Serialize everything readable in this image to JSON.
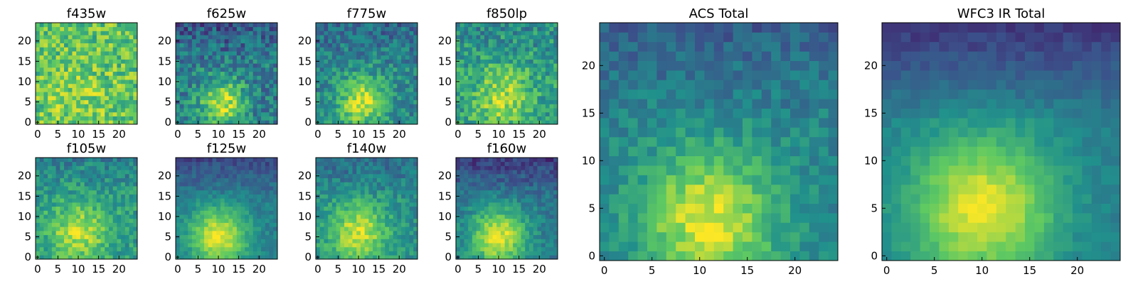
{
  "chart_data": [
    {
      "type": "heatmap",
      "title": "f435w",
      "grid_size": 25,
      "xlim": [
        0,
        24
      ],
      "ylim": [
        0,
        24
      ],
      "xticks": [
        0,
        5,
        10,
        15,
        20
      ],
      "yticks": [
        0,
        5,
        10,
        15,
        20
      ],
      "peak": [
        10,
        6
      ],
      "background_level": 0.72,
      "noise": 0.2,
      "peak_amplitude": 0.1,
      "peak_sigma": 6,
      "top_fade": 0.0
    },
    {
      "type": "heatmap",
      "title": "f625w",
      "grid_size": 25,
      "xlim": [
        0,
        24
      ],
      "ylim": [
        0,
        24
      ],
      "xticks": [
        0,
        5,
        10,
        15,
        20
      ],
      "yticks": [
        0,
        5,
        10,
        15,
        20
      ],
      "peak": [
        11,
        5
      ],
      "background_level": 0.42,
      "noise": 0.18,
      "peak_amplitude": 0.5,
      "peak_sigma": 4,
      "top_fade": 0.15
    },
    {
      "type": "heatmap",
      "title": "f775w",
      "grid_size": 25,
      "xlim": [
        0,
        24
      ],
      "ylim": [
        0,
        24
      ],
      "xticks": [
        0,
        5,
        10,
        15,
        20
      ],
      "yticks": [
        0,
        5,
        10,
        15,
        20
      ],
      "peak": [
        11,
        5
      ],
      "background_level": 0.46,
      "noise": 0.16,
      "peak_amplitude": 0.48,
      "peak_sigma": 4.2,
      "top_fade": 0.12
    },
    {
      "type": "heatmap",
      "title": "f850lp",
      "grid_size": 25,
      "xlim": [
        0,
        24
      ],
      "ylim": [
        0,
        24
      ],
      "xticks": [
        0,
        5,
        10,
        15,
        20
      ],
      "yticks": [
        0,
        5,
        10,
        15,
        20
      ],
      "peak": [
        11,
        6
      ],
      "background_level": 0.56,
      "noise": 0.18,
      "peak_amplitude": 0.32,
      "peak_sigma": 5,
      "top_fade": 0.08
    },
    {
      "type": "heatmap",
      "title": "f105w",
      "grid_size": 25,
      "xlim": [
        0,
        24
      ],
      "ylim": [
        0,
        24
      ],
      "xticks": [
        0,
        5,
        10,
        15,
        20
      ],
      "yticks": [
        0,
        5,
        10,
        15,
        20
      ],
      "peak": [
        10,
        6
      ],
      "background_level": 0.55,
      "noise": 0.14,
      "peak_amplitude": 0.35,
      "peak_sigma": 5,
      "top_fade": 0.12
    },
    {
      "type": "heatmap",
      "title": "f125w",
      "grid_size": 25,
      "xlim": [
        0,
        24
      ],
      "ylim": [
        0,
        24
      ],
      "xticks": [
        0,
        5,
        10,
        15,
        20
      ],
      "yticks": [
        0,
        5,
        10,
        15,
        20
      ],
      "peak": [
        10,
        5
      ],
      "background_level": 0.42,
      "noise": 0.08,
      "peak_amplitude": 0.55,
      "peak_sigma": 5,
      "top_fade": 0.2
    },
    {
      "type": "heatmap",
      "title": "f140w",
      "grid_size": 25,
      "xlim": [
        0,
        24
      ],
      "ylim": [
        0,
        24
      ],
      "xticks": [
        0,
        5,
        10,
        15,
        20
      ],
      "yticks": [
        0,
        5,
        10,
        15,
        20
      ],
      "peak": [
        10,
        6
      ],
      "background_level": 0.5,
      "noise": 0.12,
      "peak_amplitude": 0.42,
      "peak_sigma": 5,
      "top_fade": 0.15
    },
    {
      "type": "heatmap",
      "title": "f160w",
      "grid_size": 25,
      "xlim": [
        0,
        24
      ],
      "ylim": [
        0,
        24
      ],
      "xticks": [
        0,
        5,
        10,
        15,
        20
      ],
      "yticks": [
        0,
        5,
        10,
        15,
        20
      ],
      "peak": [
        10,
        5
      ],
      "background_level": 0.4,
      "noise": 0.1,
      "peak_amplitude": 0.55,
      "peak_sigma": 5,
      "top_fade": 0.22
    },
    {
      "type": "heatmap",
      "title": "ACS Total",
      "grid_size": 25,
      "xlim": [
        0,
        24
      ],
      "ylim": [
        0,
        24
      ],
      "xticks": [
        0,
        5,
        10,
        15,
        20
      ],
      "yticks": [
        0,
        5,
        10,
        15,
        20
      ],
      "peak": [
        11,
        4
      ],
      "background_level": 0.45,
      "noise": 0.1,
      "peak_amplitude": 0.5,
      "peak_sigma": 5,
      "top_fade": 0.15
    },
    {
      "type": "heatmap",
      "title": "WFC3 IR Total",
      "grid_size": 25,
      "xlim": [
        0,
        24
      ],
      "ylim": [
        0,
        24
      ],
      "xticks": [
        0,
        5,
        10,
        15,
        20
      ],
      "yticks": [
        0,
        5,
        10,
        15,
        20
      ],
      "peak": [
        10,
        5
      ],
      "background_level": 0.42,
      "noise": 0.05,
      "peak_amplitude": 0.55,
      "peak_sigma": 5.5,
      "top_fade": 0.25
    }
  ],
  "colormap": [
    "#440154",
    "#3b528b",
    "#21918c",
    "#5ec962",
    "#fde725"
  ]
}
